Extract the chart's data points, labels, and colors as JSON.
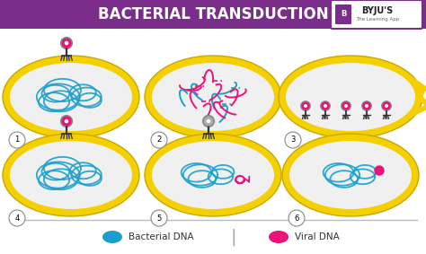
{
  "title": "BACTERIAL TRANSDUCTION",
  "title_bg": "#7b2d8b",
  "title_color": "#ffffff",
  "bg_color": "#ffffff",
  "cell_outer_color": "#f5d000",
  "cell_inner_color": "#f0f0f0",
  "bacterial_dna_color": "#1a9fcc",
  "viral_dna_color": "#ee1177",
  "legend_bacterial": "Bacterial DNA",
  "legend_viral": "Viral DNA",
  "byju_text": "BYJU'S",
  "byju_sub": "The Learning App",
  "cell_labels": [
    "1",
    "2",
    "3",
    "4",
    "5",
    "6"
  ]
}
